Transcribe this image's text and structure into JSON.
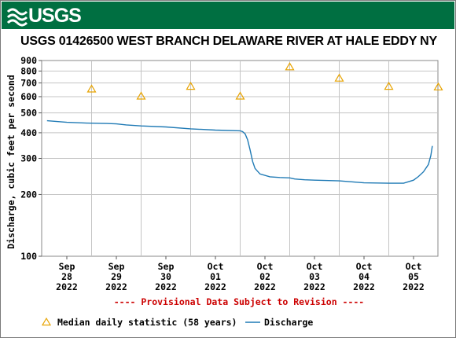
{
  "header": {
    "logo_text": "USGS",
    "logo_icon": "usgs-wave-logo-icon",
    "banner_color": "#006f41"
  },
  "chart_data": {
    "type": "line",
    "title": "USGS 01426500 WEST BRANCH DELAWARE RIVER AT HALE EDDY NY",
    "ylabel": "Discharge, cubic feet per second",
    "xlabel": "",
    "y_scale": "log",
    "ylim": [
      100,
      900
    ],
    "y_ticks": [
      100,
      200,
      300,
      400,
      500,
      600,
      700,
      800,
      900
    ],
    "y_tick_labels": [
      "100",
      "200",
      "300",
      "400",
      "500",
      "600",
      "700",
      "800",
      "900"
    ],
    "x_tick_labels": [
      {
        "month": "Sep",
        "day": "28",
        "year": "2022"
      },
      {
        "month": "Sep",
        "day": "29",
        "year": "2022"
      },
      {
        "month": "Sep",
        "day": "30",
        "year": "2022"
      },
      {
        "month": "Oct",
        "day": "01",
        "year": "2022"
      },
      {
        "month": "Oct",
        "day": "02",
        "year": "2022"
      },
      {
        "month": "Oct",
        "day": "03",
        "year": "2022"
      },
      {
        "month": "Oct",
        "day": "04",
        "year": "2022"
      },
      {
        "month": "Oct",
        "day": "05",
        "year": "2022"
      }
    ],
    "grid": true,
    "provisional_note": "---- Provisional Data Subject to Revision ----",
    "series": [
      {
        "name": "Discharge",
        "color": "#1f7ab5",
        "x_units": "days from Sep 28 2022 00:00",
        "points": [
          [
            -0.4,
            458
          ],
          [
            0.0,
            450
          ],
          [
            0.4,
            446
          ],
          [
            0.8,
            444
          ],
          [
            1.0,
            442
          ],
          [
            1.2,
            437
          ],
          [
            1.5,
            432
          ],
          [
            2.0,
            427
          ],
          [
            2.5,
            418
          ],
          [
            3.0,
            412
          ],
          [
            3.5,
            409
          ],
          [
            3.55,
            405
          ],
          [
            3.6,
            395
          ],
          [
            3.65,
            370
          ],
          [
            3.7,
            330
          ],
          [
            3.75,
            290
          ],
          [
            3.8,
            268
          ],
          [
            3.9,
            252
          ],
          [
            4.1,
            244
          ],
          [
            4.3,
            242
          ],
          [
            4.5,
            241
          ],
          [
            4.6,
            238
          ],
          [
            4.8,
            236
          ],
          [
            5.0,
            235
          ],
          [
            5.5,
            233
          ],
          [
            6.0,
            228
          ],
          [
            6.5,
            227
          ],
          [
            6.8,
            227
          ],
          [
            7.0,
            235
          ],
          [
            7.1,
            245
          ],
          [
            7.2,
            258
          ],
          [
            7.3,
            280
          ],
          [
            7.35,
            310
          ],
          [
            7.38,
            345
          ]
        ]
      },
      {
        "name": "Median daily statistic (58 years)",
        "color": "#e8a300",
        "marker": "triangle",
        "x_units": "days from Sep 28 2022 00:00",
        "points": [
          [
            0.5,
            655
          ],
          [
            1.5,
            605
          ],
          [
            2.5,
            675
          ],
          [
            3.5,
            605
          ],
          [
            4.5,
            840
          ],
          [
            5.5,
            740
          ],
          [
            6.5,
            675
          ],
          [
            7.5,
            670
          ]
        ]
      }
    ],
    "legend": {
      "position": "bottom",
      "items": [
        {
          "label": "Median daily statistic (58 years)",
          "symbol": "triangle",
          "color": "#e8a300"
        },
        {
          "label": "Discharge",
          "symbol": "line",
          "color": "#1f7ab5"
        }
      ]
    }
  }
}
